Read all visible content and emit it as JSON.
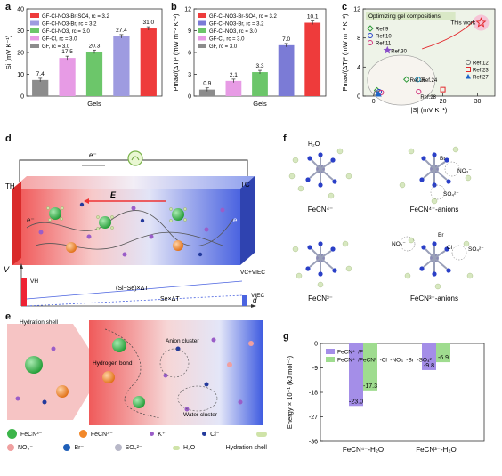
{
  "panels": {
    "a": "a",
    "b": "b",
    "c": "c",
    "d": "d",
    "e": "e",
    "f": "f",
    "g": "g"
  },
  "chart_data": [
    {
      "type": "bar",
      "panel": "a",
      "categories": [
        "GF",
        "GF-Cl",
        "GF-Cl-NO3",
        "GF-Cl-NO3-Br",
        "GF-Cl-NO3-Br-SO4"
      ],
      "values": [
        7.4,
        17.5,
        20.3,
        27.4,
        31.0
      ],
      "value_labels": [
        "7.4",
        "17.5",
        "20.3",
        "27.4",
        "31.0"
      ],
      "colors": [
        "#8c8c8c",
        "#e79be5",
        "#6cc66a",
        "#9e9be0",
        "#ee3b3b"
      ],
      "legend": [
        "GF-Cl-NO3-Br-SO4, rc = 3.2",
        "GF-Cl-NO3-Br, rc = 3.2",
        "GF-Cl-NO3, rc = 3.0",
        "GF-Cl, rc = 3.0",
        "GF, rc = 3.0"
      ],
      "xlabel": "Gels",
      "ylabel": "Si (mV K⁻¹)",
      "ylim": [
        0,
        40
      ],
      "yticks": [
        "0",
        "10",
        "20",
        "30",
        "40"
      ]
    },
    {
      "type": "bar",
      "panel": "b",
      "categories": [
        "GF",
        "GF-Cl",
        "GF-Cl-NO3",
        "GF-Cl-NO3-Br",
        "GF-Cl-NO3-Br-SO4"
      ],
      "values": [
        0.9,
        2.1,
        3.3,
        7.0,
        10.1
      ],
      "value_labels": [
        "0.9",
        "2.1",
        "3.3",
        "7.0",
        "10.1"
      ],
      "colors": [
        "#8c8c8c",
        "#e79be5",
        "#6cc66a",
        "#7b7bd6",
        "#ee3b3b"
      ],
      "legend": [
        "GF-Cl-NO3-Br-SO4, rc = 3.2",
        "GF-Cl-NO3-Br, rc = 3.2",
        "GF-Cl-NO3, rc = 3.0",
        "GF-Cl, rc = 3.0",
        "GF, rc = 3.0"
      ],
      "xlabel": "Gels",
      "ylabel": "Pmax/(ΔT)² (mW m⁻² K⁻²)",
      "ylim": [
        0,
        12
      ],
      "yticks": [
        "0",
        "3",
        "6",
        "9",
        "12"
      ]
    },
    {
      "type": "scatter",
      "panel": "c",
      "title": "Optimizing gel compositions",
      "annotation": "This work",
      "xlabel": "|S| (mV K⁻¹)",
      "ylabel": "Pmax/(ΔT)² (mW m⁻² K⁻²)",
      "xlim": [
        -3,
        35
      ],
      "ylim": [
        0,
        12
      ],
      "xticks": [
        "0",
        "10",
        "20",
        "30"
      ],
      "yticks": [
        "0",
        "4",
        "8",
        "12"
      ],
      "points": [
        {
          "label": "This work",
          "x": 31.0,
          "y": 10.1,
          "marker": "star",
          "color": "#e3262b"
        },
        {
          "label": "Ref.30",
          "x": 4.0,
          "y": 6.3,
          "marker": "star",
          "color": "#8a4fc9"
        },
        {
          "label": "Ref.26",
          "x": 9.5,
          "y": 2.3,
          "marker": "diamond",
          "color": "#2f9a3a"
        },
        {
          "label": "Ref.24",
          "x": 12.8,
          "y": 2.3,
          "marker": "pentagon",
          "color": "#1c9bc9"
        },
        {
          "label": "Ref.28",
          "x": 13.0,
          "y": 0.6,
          "marker": "hexagon",
          "color": "#d1367e"
        },
        {
          "label": "Ref.9",
          "x": 1.0,
          "y": 0.8,
          "marker": "diamond",
          "color": "#2f9a3a"
        },
        {
          "label": "Ref.10",
          "x": 1.6,
          "y": 0.6,
          "marker": "circle",
          "color": "#2640c9"
        },
        {
          "label": "Ref.11",
          "x": 2.2,
          "y": 0.5,
          "marker": "circle",
          "color": "#d1367e"
        },
        {
          "label": "Ref.12",
          "x": 0.8,
          "y": 0.4,
          "marker": "pentagon",
          "color": "#777777"
        },
        {
          "label": "Ref.23",
          "x": 20.0,
          "y": 0.9,
          "marker": "square",
          "color": "#e3262b"
        },
        {
          "label": "Ref.27",
          "x": 1.4,
          "y": 0.3,
          "marker": "triangle",
          "color": "#1c64c9"
        }
      ],
      "legend_left": [
        "Ref.9",
        "Ref.10",
        "Ref.11"
      ],
      "legend_right": [
        "Ref.12",
        "Ref.23",
        "Ref.27"
      ]
    },
    {
      "type": "bar",
      "panel": "g",
      "categories": [
        "FeCN⁴⁻-H₂O",
        "FeCN³⁻-H₂O"
      ],
      "series": [
        {
          "name": "FeCN⁴⁻/FeCN³⁻",
          "values": [
            -23.0,
            -9.8
          ],
          "color": "#a48ee8"
        },
        {
          "name": "FeCN⁴⁻/FeCN³⁻-Cl⁻-NO₃⁻-Br⁻-SO₄²⁻",
          "values": [
            -17.3,
            -6.9
          ],
          "color": "#9fdc8f"
        }
      ],
      "value_labels": [
        [
          "-23.0",
          "-9.8"
        ],
        [
          "-17.3",
          "-6.9"
        ]
      ],
      "ylabel": "Energy × 10⁻¹ (kJ mol⁻¹)",
      "ylim": [
        0,
        -36
      ],
      "yticks": [
        "0",
        "-9",
        "-18",
        "-27",
        "-36"
      ]
    }
  ],
  "d": {
    "circuit_label": "e⁻",
    "hot": "TH",
    "cold": "TC",
    "field": "E",
    "e_left": "e⁻",
    "e_right": "e",
    "voltage_axis": "V",
    "distance_axis": "d",
    "v_start": "VH",
    "v_end1": "VC+VIEC",
    "v_end2": "VIEC",
    "eq1": "(Si−Se)×ΔT",
    "eq2": "Se×ΔT"
  },
  "e": {
    "hydration_shell": "Hydration shell",
    "hydrogen_bond": "Hydrogen bond",
    "anion_cluster": "Anion cluster",
    "water_cluster": "Water cluster",
    "legend": [
      {
        "label": "FeCN³⁻",
        "color": "#3cb54a"
      },
      {
        "label": "FeCN⁴⁻",
        "color": "#f2882a"
      },
      {
        "label": "K⁺",
        "color": "#9a5dc8"
      },
      {
        "label": "Cl⁻",
        "color": "#233a9c"
      },
      {
        "label": "NO₃⁻",
        "color": "#f0a0a0"
      },
      {
        "label": "Br⁻",
        "color": "#1f5fb8"
      },
      {
        "label": "SO₄²⁻",
        "color": "#b8b8c8"
      },
      {
        "label": "H₂O",
        "color": "#cfe3a8"
      },
      {
        "label": "Hydration shell",
        "color": "#cfe3a8"
      }
    ]
  },
  "f": {
    "labels": [
      "FeCN⁴⁻",
      "FeCN⁴⁻-anions",
      "FeCN³⁻",
      "FeCN³⁻-anions"
    ],
    "h2o": "H₂O",
    "br1": "Br⁻",
    "no3_1": "NO₃⁻",
    "so4_1": "SO₄²⁻",
    "no3_2": "NO₃⁻",
    "br2": "Br",
    "cl2": "Cl⁻",
    "so4_2": "SO₄²⁻"
  }
}
